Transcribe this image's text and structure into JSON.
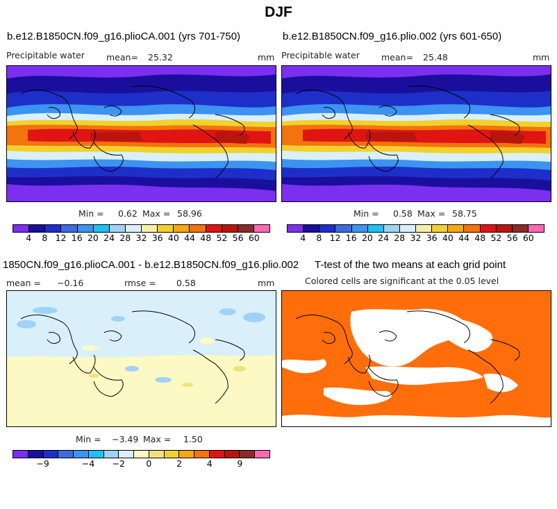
{
  "title": "DJF",
  "colors": {
    "pw_levels": [
      "#7b2ff0",
      "#1a0f9c",
      "#1d2fc8",
      "#3f6be0",
      "#3c93f0",
      "#1ec0f5",
      "#9fd3f5",
      "#d9f0fb",
      "#f5f0a8",
      "#f2d12e",
      "#f5a813",
      "#f2740c",
      "#e11414",
      "#b9150f",
      "#8b2a2a",
      "#ff69b4"
    ],
    "diff_levels": [
      "#7b2ff0",
      "#1a0f9c",
      "#1d2fc8",
      "#3f6be0",
      "#3c93f0",
      "#1ec0f5",
      "#9fd3f5",
      "#d9f0fb",
      "#fcf9c4",
      "#f5e17a",
      "#f2d12e",
      "#f5a813",
      "#f2740c",
      "#e11414",
      "#b9150f",
      "#8b2a2a",
      "#ff69b4"
    ],
    "significant": "#ff6e0a"
  },
  "panels": [
    {
      "title": "b.e12.B1850CN.f09_g16.plioCA.001 (yrs 701-750)",
      "variable": "Precipitable water",
      "mean_label": "mean=",
      "mean": "25.32",
      "units": "mm",
      "min_label": "Min =",
      "min": "0.62",
      "max_label": "Max =",
      "max": "58.96",
      "ticks": [
        "4",
        "8",
        "12",
        "16",
        "20",
        "24",
        "28",
        "32",
        "36",
        "40",
        "44",
        "48",
        "52",
        "56",
        "60"
      ]
    },
    {
      "title": "b.e12.B1850CN.f09_g16.plio.002 (yrs 601-650)",
      "variable": "Precipitable water",
      "mean_label": "mean=",
      "mean": "25.48",
      "units": "mm",
      "min_label": "Min =",
      "min": "0.58",
      "max_label": "Max =",
      "max": "58.75",
      "ticks": [
        "4",
        "8",
        "12",
        "16",
        "20",
        "24",
        "28",
        "32",
        "36",
        "40",
        "44",
        "48",
        "52",
        "56",
        "60"
      ]
    },
    {
      "title": "1850CN.f09_g16.plioCA.001 - b.e12.B1850CN.f09_g16.plio.002",
      "mean_label": "mean =",
      "mean": "−0.16",
      "rmse_label": "rmse =",
      "rmse": "0.58",
      "units": "mm",
      "min_label": "Min =",
      "min": "−3.49",
      "max_label": "Max =",
      "max": "1.50",
      "ticks": [
        "−9",
        "−4",
        "−2",
        "0",
        "2",
        "4",
        "9"
      ]
    },
    {
      "title": "T-test of the two means at each grid point",
      "subtitle": "Colored cells are significant at the 0.05 level"
    }
  ],
  "chart_data": [
    {
      "type": "heatmap",
      "title": "b.e12.B1850CN.f09_g16.plioCA.001 (yrs 701-750)",
      "variable": "Precipitable water",
      "units": "mm",
      "mean": 25.32,
      "min": 0.62,
      "max": 58.96,
      "contour_levels": [
        4,
        8,
        12,
        16,
        20,
        24,
        28,
        32,
        36,
        40,
        44,
        48,
        52,
        56,
        60
      ]
    },
    {
      "type": "heatmap",
      "title": "b.e12.B1850CN.f09_g16.plio.002 (yrs 601-650)",
      "variable": "Precipitable water",
      "units": "mm",
      "mean": 25.48,
      "min": 0.58,
      "max": 58.75,
      "contour_levels": [
        4,
        8,
        12,
        16,
        20,
        24,
        28,
        32,
        36,
        40,
        44,
        48,
        52,
        56,
        60
      ]
    },
    {
      "type": "heatmap",
      "title": "1850CN.f09_g16.plioCA.001 - b.e12.B1850CN.f09_g16.plio.002",
      "units": "mm",
      "mean": -0.16,
      "rmse": 0.58,
      "min": -3.49,
      "max": 1.5,
      "contour_labels": [
        -9,
        -4,
        -2,
        0,
        2,
        4,
        9
      ]
    },
    {
      "type": "heatmap",
      "title": "T-test of the two means at each grid point",
      "subtitle": "Colored cells are significant at the 0.05 level"
    }
  ]
}
